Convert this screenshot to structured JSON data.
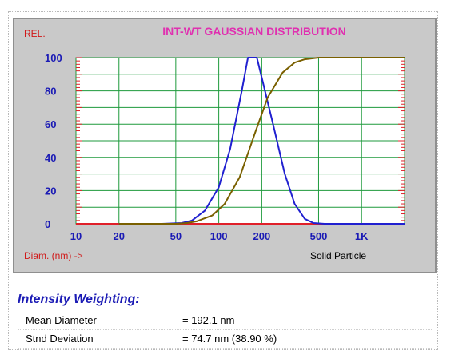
{
  "chart_data": {
    "type": "line",
    "title": "INT-WT GAUSSIAN DISTRIBUTION",
    "ylabel": "REL.",
    "xlabel": "Diam. (nm) ->",
    "annotation": "Solid Particle",
    "x_scale": "log",
    "xlim": [
      10,
      2000
    ],
    "ylim": [
      0,
      100
    ],
    "x_ticks": [
      {
        "value": 10,
        "label": "10"
      },
      {
        "value": 20,
        "label": "20"
      },
      {
        "value": 50,
        "label": "50"
      },
      {
        "value": 100,
        "label": "100"
      },
      {
        "value": 200,
        "label": "200"
      },
      {
        "value": 500,
        "label": "500"
      },
      {
        "value": 1000,
        "label": "1K"
      }
    ],
    "y_ticks": [
      0,
      20,
      40,
      60,
      80,
      100
    ],
    "grid": true,
    "series": [
      {
        "name": "",
        "color": "#2020d0",
        "x": [
          20,
          40,
          55,
          65,
          80,
          100,
          120,
          145,
          160,
          185,
          200,
          240,
          290,
          340,
          400,
          460,
          550,
          1000,
          2000
        ],
        "y": [
          0,
          0,
          0.5,
          2,
          8,
          22,
          45,
          80,
          100,
          100,
          88,
          60,
          30,
          12,
          3,
          0.5,
          0,
          0,
          0
        ]
      },
      {
        "name": "",
        "color": "#7a6000",
        "x": [
          20,
          50,
          60,
          70,
          90,
          110,
          140,
          180,
          220,
          280,
          340,
          400,
          500,
          2000
        ],
        "y": [
          0,
          0,
          0.5,
          1.5,
          5,
          12,
          28,
          55,
          76,
          91,
          97,
          99,
          100,
          100
        ]
      }
    ]
  },
  "stats": {
    "title": "Intensity Weighting:",
    "rows": [
      {
        "label": "Mean Diameter",
        "value": "= 192.1 nm"
      },
      {
        "label": "Stnd Deviation",
        "value": "= 74.7  nm (38.90 %)"
      }
    ]
  },
  "colors": {
    "plot_bg": "#ffffff",
    "grid": "#1e9a3c",
    "axis_ticks": "#e0202a",
    "title": "#e030b0",
    "tick_labels": "#1b1bb5",
    "label_red": "#d01818"
  }
}
